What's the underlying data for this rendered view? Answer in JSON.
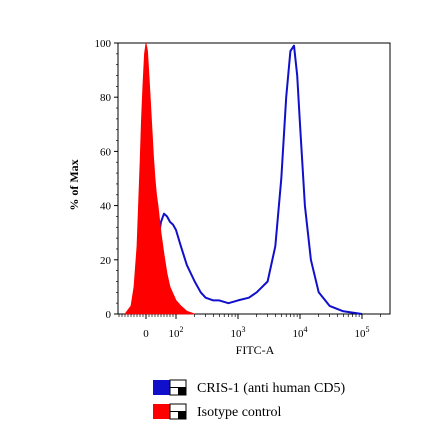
{
  "chart_data": {
    "type": "area",
    "xlabel": "FITC-A",
    "ylabel": "% of Max",
    "ylim": [
      0,
      100
    ],
    "yticks": [
      0,
      20,
      40,
      60,
      80,
      100
    ],
    "x_scale": "biexponential",
    "xticks": [
      {
        "value": 0,
        "label": "0"
      },
      {
        "value": 100,
        "label": "10",
        "sup": "2"
      },
      {
        "value": 1000,
        "label": "10",
        "sup": "3"
      },
      {
        "value": 10000,
        "label": "10",
        "sup": "4"
      },
      {
        "value": 100000,
        "label": "10",
        "sup": "5"
      }
    ],
    "series": [
      {
        "name": "CRIS-1 (anti human CD5)",
        "color": "#1010cc",
        "style": "line",
        "points": [
          [
            -50,
            0
          ],
          [
            -30,
            1
          ],
          [
            -10,
            3
          ],
          [
            0,
            5
          ],
          [
            10,
            9
          ],
          [
            20,
            14
          ],
          [
            30,
            20
          ],
          [
            40,
            27
          ],
          [
            50,
            34
          ],
          [
            60,
            37
          ],
          [
            70,
            36
          ],
          [
            80,
            34
          ],
          [
            90,
            33
          ],
          [
            100,
            31
          ],
          [
            120,
            25
          ],
          [
            150,
            18
          ],
          [
            200,
            12
          ],
          [
            250,
            8
          ],
          [
            300,
            6
          ],
          [
            400,
            5
          ],
          [
            500,
            5
          ],
          [
            700,
            4
          ],
          [
            1000,
            5
          ],
          [
            1500,
            6
          ],
          [
            2000,
            8
          ],
          [
            3000,
            12
          ],
          [
            4000,
            25
          ],
          [
            5000,
            50
          ],
          [
            6000,
            80
          ],
          [
            7000,
            97
          ],
          [
            8000,
            99
          ],
          [
            9000,
            88
          ],
          [
            10000,
            70
          ],
          [
            12000,
            40
          ],
          [
            15000,
            20
          ],
          [
            20000,
            8
          ],
          [
            30000,
            3
          ],
          [
            50000,
            1
          ],
          [
            100000,
            0
          ]
        ]
      },
      {
        "name": "Isotype control",
        "color": "#ff0000",
        "style": "filled",
        "points": [
          [
            -70,
            0
          ],
          [
            -50,
            3
          ],
          [
            -40,
            10
          ],
          [
            -30,
            25
          ],
          [
            -25,
            40
          ],
          [
            -20,
            55
          ],
          [
            -15,
            72
          ],
          [
            -10,
            85
          ],
          [
            -5,
            96
          ],
          [
            0,
            100
          ],
          [
            5,
            97
          ],
          [
            10,
            88
          ],
          [
            15,
            78
          ],
          [
            20,
            68
          ],
          [
            25,
            58
          ],
          [
            30,
            50
          ],
          [
            35,
            44
          ],
          [
            40,
            40
          ],
          [
            45,
            35
          ],
          [
            50,
            30
          ],
          [
            60,
            22
          ],
          [
            70,
            15
          ],
          [
            80,
            10
          ],
          [
            100,
            5
          ],
          [
            120,
            3
          ],
          [
            150,
            1
          ],
          [
            200,
            0
          ]
        ]
      }
    ],
    "legend": {
      "placement": "bottom",
      "entries": [
        "CRIS-1 (anti human CD5)",
        "Isotype control"
      ]
    }
  }
}
